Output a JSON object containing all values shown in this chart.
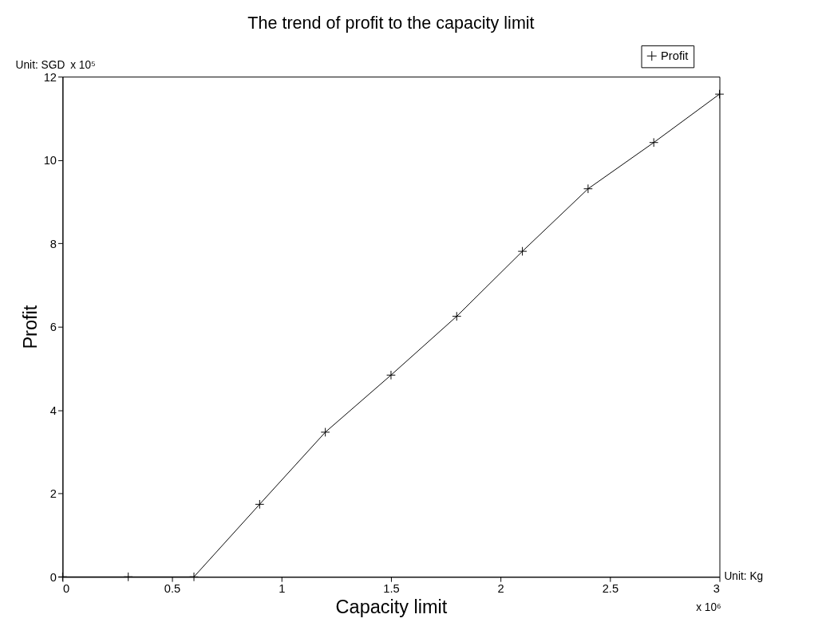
{
  "chart_data": {
    "type": "line",
    "title": "The trend of profit to the capacity limit",
    "xlabel": "Capacity limit",
    "ylabel": "Profit",
    "annotations": [
      "Unit: SGD",
      "x 10⁵",
      "Unit: Kg",
      "x 10⁶"
    ],
    "x": [
      0,
      0.3,
      0.6,
      0.9,
      1.2,
      1.5,
      1.8,
      2.1,
      2.4,
      2.7,
      3.0
    ],
    "series": [
      {
        "name": "Profit",
        "color": "#000000",
        "values": [
          0,
          0,
          0,
          1.74,
          3.47,
          4.84,
          6.25,
          7.81,
          9.31,
          10.42,
          11.58
        ]
      }
    ],
    "xlim": [
      0,
      3
    ],
    "xticks": [
      0,
      0.5,
      1,
      1.5,
      2,
      2.5,
      3
    ],
    "ylim": [
      0,
      12
    ],
    "yticks": [
      0,
      2,
      4,
      6,
      8,
      10,
      12
    ],
    "grid": false,
    "legend": "top right",
    "marker": "cross",
    "line_style": "solid"
  }
}
